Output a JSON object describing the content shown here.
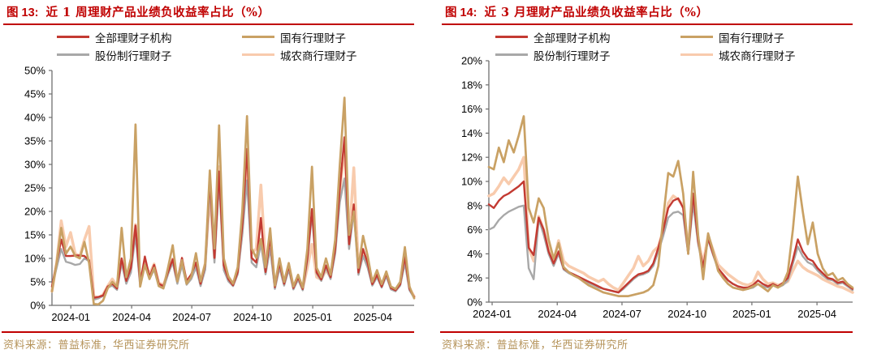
{
  "charts": [
    {
      "figure_label": "图 13:",
      "title": "近 1 周理财产品业绩负收益率占比（%）",
      "source": "资料来源：普益标准，华西证券研究所",
      "accent_color": "#c00000",
      "source_color": "#b5935a",
      "chart_data": {
        "type": "line",
        "ylim": [
          0,
          50
        ],
        "y_step": 5,
        "y_suffix": "%",
        "grid": false,
        "legend_position": "top",
        "x_ticks": [
          {
            "label": "2024-01",
            "pos": 0.052
          },
          {
            "label": "2024-04",
            "pos": 0.22
          },
          {
            "label": "2024-07",
            "pos": 0.386
          },
          {
            "label": "2024-10",
            "pos": 0.554
          },
          {
            "label": "2025-01",
            "pos": 0.72
          },
          {
            "label": "2025-04",
            "pos": 0.886
          }
        ],
        "x_note": "weekly points, 2023-12 through 2025-06",
        "series": [
          {
            "name": "全部理财子机构",
            "color": "#c33a32",
            "values": [
              4,
              9,
              14,
              10.5,
              10.5,
              10.6,
              10.6,
              10.5,
              9.6,
              1.6,
              1.8,
              2.1,
              4,
              4.6,
              3.6,
              10,
              5.2,
              8,
              17,
              4.6,
              10.4,
              6,
              8.6,
              4.6,
              4.1,
              7.1,
              9.8,
              5.1,
              10.1,
              5.1,
              6.6,
              9.1,
              4.6,
              8.6,
              26.8,
              10.1,
              28.5,
              8.5,
              5.6,
              4.3,
              7.1,
              17.1,
              33.3,
              10.1,
              9.1,
              18.6,
              7.1,
              14.6,
              3.9,
              9,
              4.6,
              8.4,
              3.7,
              6,
              3.5,
              10,
              20.5,
              7,
              5.5,
              8.5,
              6,
              12,
              25,
              35.8,
              13,
              21.5,
              7,
              12,
              9,
              4.5,
              6.5,
              4,
              6.8,
              3.7,
              3.2,
              4.5,
              10.4,
              3.5,
              1.8
            ]
          },
          {
            "name": "国有行理财子",
            "color": "#c9a164",
            "values": [
              3,
              9,
              16.5,
              11,
              12.5,
              10.5,
              10,
              13.5,
              9,
              0.3,
              0.2,
              1,
              3.6,
              5,
              4,
              16.5,
              6,
              10,
              38.5,
              4,
              8.6,
              5.6,
              8,
              4.1,
              3.6,
              8,
              12.8,
              5.1,
              9.6,
              4.6,
              6.1,
              11.1,
              5.1,
              8.9,
              28.7,
              12.1,
              38.3,
              10,
              6.1,
              4.6,
              8.1,
              20.1,
              40.3,
              12.1,
              10.1,
              14.1,
              8.1,
              16.4,
              4.2,
              10,
              5,
              9,
              4,
              6.5,
              3.8,
              12,
              29.5,
              8,
              6,
              10,
              6.5,
              14,
              30,
              44.2,
              15,
              20,
              8,
              14.8,
              10.5,
              5,
              7.5,
              4.5,
              7.2,
              4,
              3.5,
              5,
              12.4,
              4,
              1.5
            ]
          },
          {
            "name": "股份制行理财子",
            "color": "#a8a8a8",
            "values": [
              4,
              8,
              12,
              9.3,
              9,
              8.6,
              8.8,
              10,
              9.4,
              1.2,
              1.5,
              2,
              3.8,
              4.2,
              3.3,
              9,
              4.6,
              7,
              15,
              4.1,
              8.6,
              5.6,
              7.6,
              4.1,
              3.6,
              6.6,
              9.1,
              4.6,
              8.6,
              4.4,
              5.6,
              8.1,
              4.1,
              7.6,
              25.5,
              9.1,
              26.5,
              7.5,
              5.1,
              4.1,
              6.6,
              15.1,
              26.6,
              9.1,
              8.1,
              13.1,
              6.6,
              12.1,
              3.5,
              8,
              4.2,
              7.6,
              3.4,
              5.5,
              3.2,
              9.5,
              19.5,
              6.8,
              5.2,
              8,
              5.6,
              11,
              22,
              27,
              12,
              20,
              6.5,
              10.5,
              8,
              4.2,
              6,
              3.8,
              6.2,
              3.4,
              3,
              4.2,
              9,
              3.2,
              1.6
            ]
          },
          {
            "name": "城农商行理财子",
            "color": "#f8cbad",
            "values": [
              3,
              9,
              18,
              12.5,
              15.5,
              11,
              10.5,
              14,
              16.8,
              2,
              1.6,
              2.3,
              4.1,
              5.6,
              4.1,
              9.6,
              5.6,
              8.2,
              17.2,
              5.1,
              9.1,
              6.6,
              8.8,
              4.8,
              4.3,
              7.1,
              9.9,
              5.3,
              9.1,
              5.1,
              6.4,
              8.6,
              4.9,
              8.9,
              23.5,
              10.1,
              29.5,
              8.5,
              6.1,
              4.6,
              7.1,
              16.1,
              31.6,
              11.1,
              12.1,
              25.6,
              9.1,
              13.6,
              4.2,
              9.3,
              4.8,
              8.6,
              3.9,
              6.2,
              3.6,
              8,
              13,
              6,
              5.5,
              7.5,
              6,
              12.5,
              24,
              33.8,
              14,
              29.3,
              8,
              11,
              8.5,
              4.6,
              6.8,
              4.2,
              6.6,
              3.8,
              3.4,
              4.6,
              9.8,
              3.6,
              1.9
            ]
          }
        ]
      }
    },
    {
      "figure_label": "图 14:",
      "title": "近 3 月理财产品业绩负收益率占比（%）",
      "source": "资料来源：普益标准，华西证券研究所",
      "accent_color": "#c00000",
      "source_color": "#b5935a",
      "chart_data": {
        "type": "line",
        "ylim": [
          0,
          20
        ],
        "y_step": 2,
        "y_suffix": "%",
        "grid": false,
        "legend_position": "top",
        "x_ticks": [
          {
            "label": "2024-01",
            "pos": 0.009
          },
          {
            "label": "2024-04",
            "pos": 0.188
          },
          {
            "label": "2024-07",
            "pos": 0.366
          },
          {
            "label": "2024-10",
            "pos": 0.545
          },
          {
            "label": "2025-01",
            "pos": 0.723
          },
          {
            "label": "2025-04",
            "pos": 0.902
          }
        ],
        "x_note": "weekly points, 2024-01 through 2025-06",
        "series": [
          {
            "name": "全部理财子机构",
            "color": "#c33a32",
            "values": [
              8.1,
              7.8,
              8.4,
              8.8,
              9,
              9.3,
              9.6,
              10,
              4.5,
              3.9,
              7,
              6,
              4.2,
              3.2,
              4.2,
              2.8,
              2.5,
              2.3,
              2.1,
              1.9,
              1.7,
              1.5,
              1.3,
              1.1,
              1,
              0.9,
              0.8,
              1.2,
              1.6,
              2,
              2.3,
              2.4,
              2.6,
              3.2,
              4.5,
              6,
              7.8,
              8.4,
              8.6,
              7.8,
              4,
              9,
              5,
              2.9,
              5.3,
              4,
              2.8,
              2.3,
              1.8,
              1.5,
              1.3,
              1.2,
              1.2,
              1.4,
              1.8,
              1.5,
              1.3,
              1.5,
              1.3,
              1.6,
              2,
              3.5,
              5.2,
              4.2,
              3.6,
              3.4,
              2.8,
              2.4,
              2,
              1.9,
              1.6,
              1.7,
              1.4,
              1.1
            ]
          },
          {
            "name": "国有行理财子",
            "color": "#c9a164",
            "values": [
              11.2,
              11,
              12.8,
              11.6,
              13.4,
              12.4,
              13.8,
              15.4,
              7.8,
              6.6,
              8.6,
              7.8,
              5.2,
              3.6,
              4.9,
              2.9,
              2.5,
              2.2,
              2,
              1.7,
              1.4,
              1.2,
              1,
              0.8,
              0.7,
              0.6,
              0.5,
              0.5,
              0.5,
              0.6,
              0.7,
              0.8,
              1,
              1.4,
              3,
              7,
              10.7,
              10.4,
              11.7,
              9,
              4,
              10.8,
              5.5,
              1.9,
              5.7,
              4.2,
              2.6,
              2,
              1.5,
              1.2,
              1.1,
              1,
              1.1,
              1.3,
              1.5,
              1.2,
              0.9,
              1.4,
              1.2,
              1.5,
              2.5,
              6,
              10.4,
              7.5,
              4.8,
              6.6,
              4,
              2.8,
              2.2,
              2.4,
              1.8,
              2,
              1.5,
              1.2
            ]
          },
          {
            "name": "股份制行理财子",
            "color": "#a8a8a8",
            "values": [
              6,
              6.2,
              6.8,
              7.2,
              7.5,
              7.7,
              7.9,
              8,
              2.8,
              1.9,
              6.9,
              5.6,
              4,
              3,
              4,
              2.7,
              2.4,
              2.2,
              2,
              1.8,
              1.6,
              1.4,
              1.2,
              1.1,
              1,
              0.9,
              0.8,
              1.1,
              1.5,
              1.9,
              2.2,
              2.3,
              2.5,
              3,
              4.2,
              5.5,
              7,
              7.4,
              7.5,
              7.2,
              4,
              8.2,
              4.8,
              2.8,
              5.2,
              3.9,
              2.7,
              2.2,
              1.8,
              1.5,
              1.3,
              1.2,
              1.1,
              1.2,
              1.5,
              1.3,
              1.2,
              1.4,
              1.2,
              1.4,
              1.8,
              3.2,
              4.6,
              3.8,
              3.3,
              3.1,
              2.6,
              2.2,
              1.9,
              1.8,
              1.5,
              1.6,
              1.3,
              1
            ]
          },
          {
            "name": "城农商行理财子",
            "color": "#f8cbad",
            "values": [
              8.8,
              9,
              9.6,
              10.3,
              9.8,
              10.4,
              11,
              12,
              4.5,
              3.4,
              7.1,
              6,
              4.4,
              3.4,
              5.1,
              3.4,
              3,
              2.8,
              2.6,
              2.4,
              2.1,
              1.9,
              1.7,
              1.9,
              1.5,
              1.2,
              1,
              1.6,
              2.2,
              2.8,
              3.8,
              3,
              3.4,
              4.2,
              4.6,
              6,
              8.2,
              8.8,
              8.5,
              8,
              4.6,
              8.6,
              5.2,
              3.2,
              5.5,
              4.3,
              3.1,
              2.7,
              2.3,
              2,
              1.7,
              1.5,
              1.4,
              1.6,
              2.5,
              1.9,
              1.5,
              1.6,
              1.4,
              1.5,
              1.7,
              2.6,
              3.4,
              2.9,
              2.6,
              2.4,
              2.2,
              1.9,
              1.7,
              1.5,
              1.3,
              1.2,
              1,
              0.8
            ]
          }
        ]
      }
    }
  ]
}
